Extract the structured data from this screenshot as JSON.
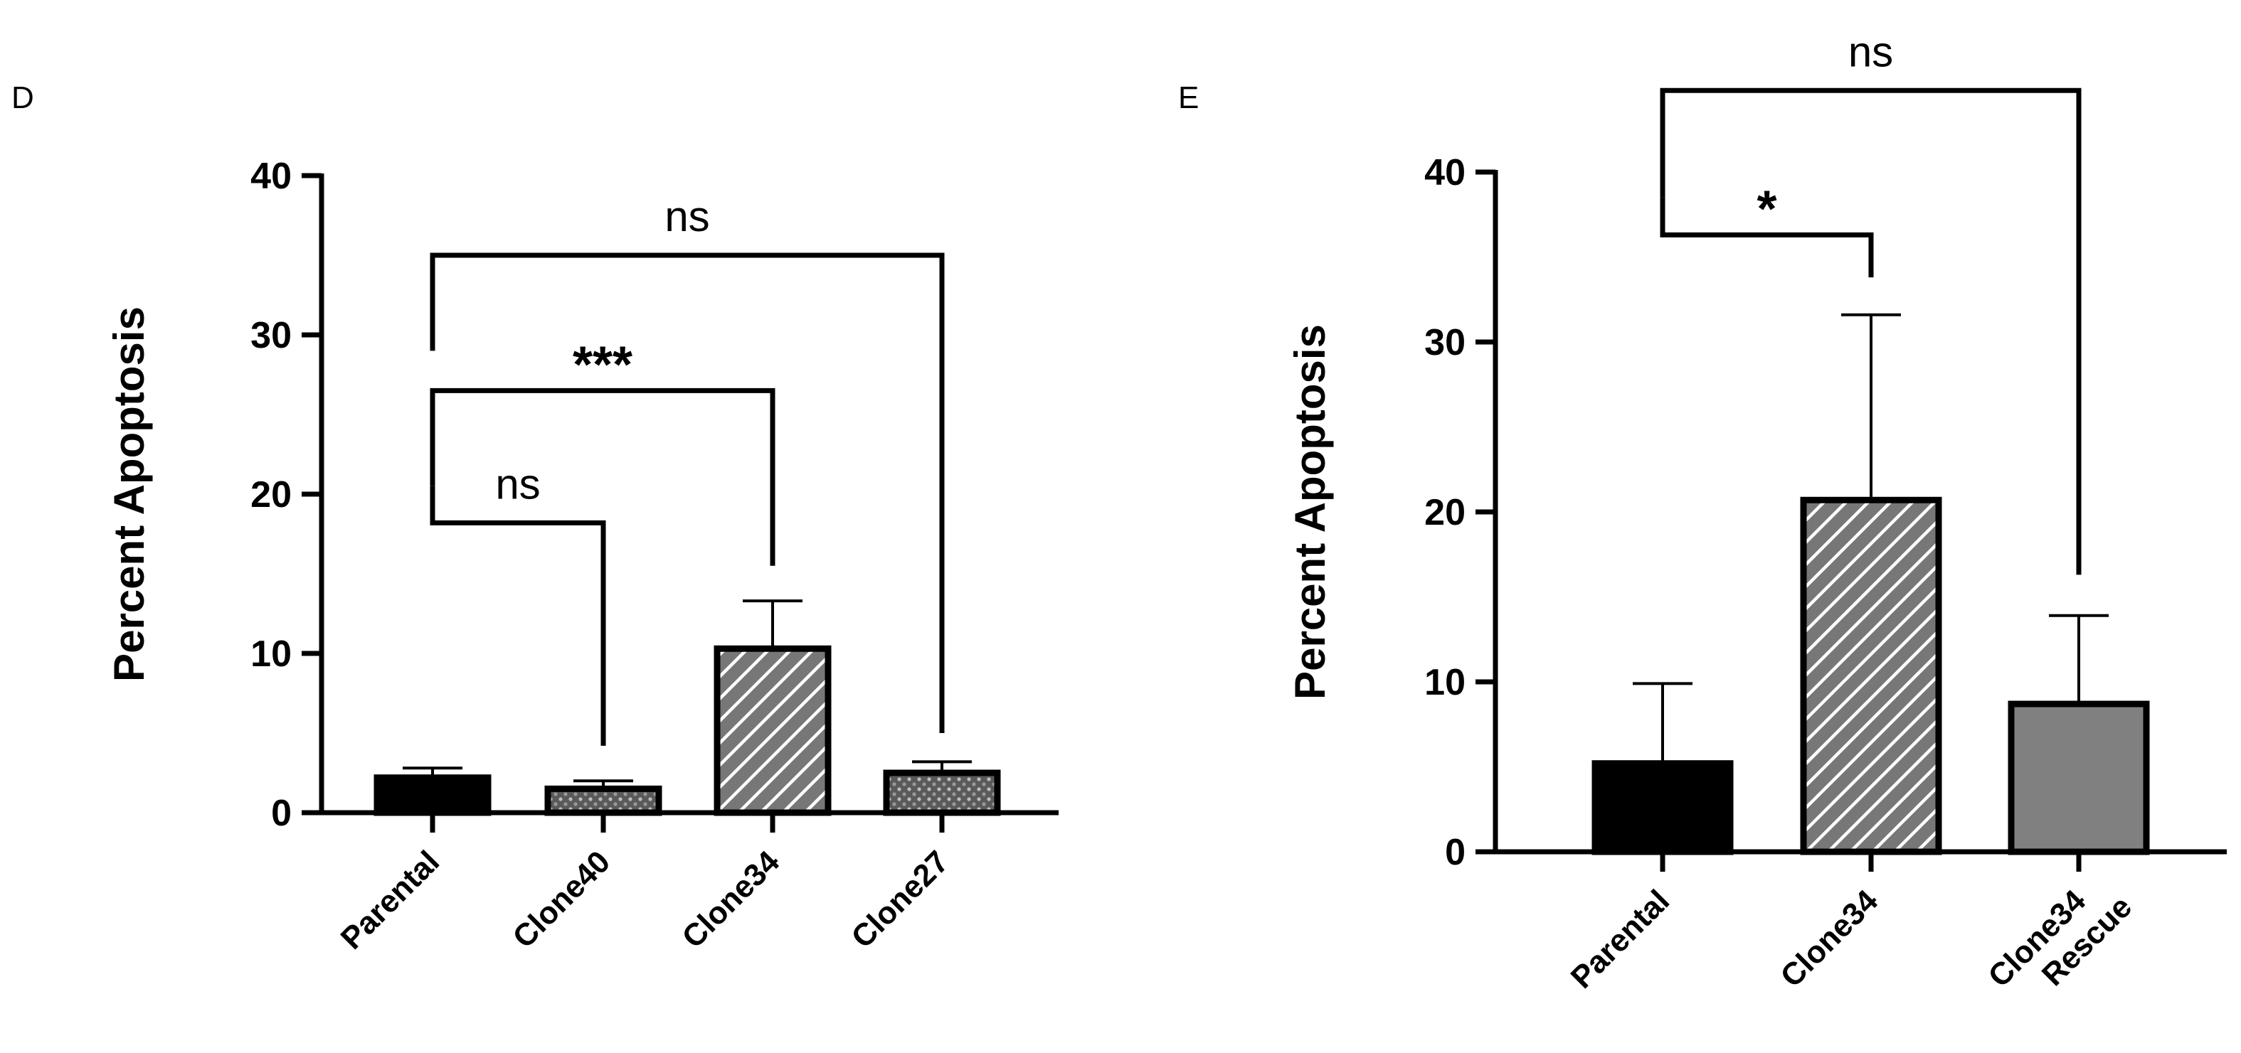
{
  "chart_data": [
    {
      "type": "bar",
      "panel": "D",
      "ylabel": "Percent Apoptosis",
      "ylim": [
        0,
        40
      ],
      "yticks": [
        "0",
        "10",
        "20",
        "30",
        "40"
      ],
      "categories": [
        "Parental",
        "Clone40",
        "Clone34",
        "Clone27"
      ],
      "values": [
        2.2,
        1.5,
        10.3,
        2.5
      ],
      "errors": [
        0.6,
        0.5,
        3.0,
        0.7
      ],
      "fills": [
        "solid",
        "dots",
        "hatch",
        "dots"
      ],
      "grid": false,
      "comparisons": [
        {
          "from": 0,
          "to": 1,
          "label": "ns",
          "level": 18.2,
          "left_start": 20.5,
          "right_end": 4.2
        },
        {
          "from": 0,
          "to": 2,
          "label": "***",
          "level": 26.5,
          "left_start": 20.5,
          "right_end": 15.5
        },
        {
          "from": 0,
          "to": 3,
          "label": "ns",
          "level": 35.0,
          "left_start": 29.0,
          "right_end": 5.0
        }
      ]
    },
    {
      "type": "bar",
      "panel": "E",
      "ylabel": "Percent Apoptosis",
      "ylim": [
        0,
        40
      ],
      "yticks": [
        "0",
        "10",
        "20",
        "30",
        "40"
      ],
      "categories": [
        "Parental",
        "Clone34",
        "Clone34\nRescue"
      ],
      "values": [
        5.2,
        20.7,
        8.7
      ],
      "errors": [
        4.7,
        10.9,
        5.2
      ],
      "fills": [
        "solid",
        "hatch",
        "gray"
      ],
      "grid": false,
      "comparisons": [
        {
          "from": 0,
          "to": 1,
          "label": "*",
          "level": 36.3,
          "left_start": 38.5,
          "right_end": 33.8
        },
        {
          "from": 0,
          "to": 2,
          "label": "ns",
          "level": 44.8,
          "left_start": 38.5,
          "right_end": 16.3
        }
      ]
    }
  ]
}
